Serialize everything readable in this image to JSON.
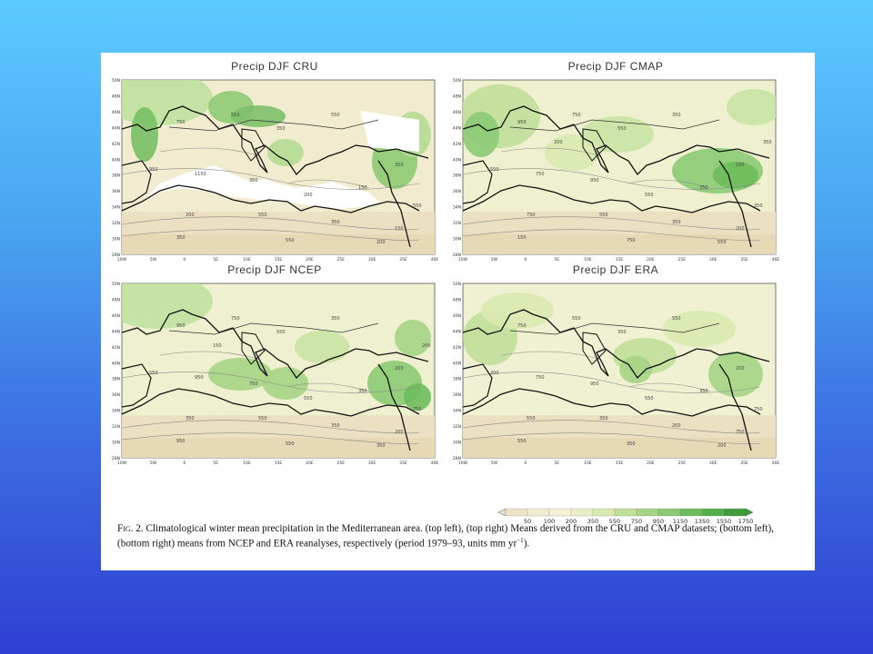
{
  "panels": [
    {
      "title": "Precip DJF CRU",
      "contour_labels": [
        "750",
        "550",
        "350",
        "550",
        "950",
        "1150",
        "350",
        "200",
        "150",
        "350",
        "550",
        "200",
        "550",
        "350",
        "150",
        "350",
        "550",
        "200"
      ]
    },
    {
      "title": "Precip DJF CMAP",
      "contour_labels": [
        "950",
        "750",
        "550",
        "350",
        "550",
        "750",
        "950",
        "550",
        "350",
        "150",
        "350",
        "750",
        "550",
        "350",
        "200",
        "150",
        "750",
        "550",
        "350",
        "200"
      ]
    },
    {
      "title": "Precip DJF NCEP",
      "contour_labels": [
        "950",
        "750",
        "550",
        "350",
        "550",
        "950",
        "750",
        "550",
        "350",
        "200",
        "750",
        "350",
        "550",
        "350",
        "200",
        "950",
        "550",
        "350",
        "200",
        "150"
      ]
    },
    {
      "title": "Precip DJF ERA",
      "contour_labels": [
        "750",
        "550",
        "350",
        "550",
        "200",
        "750",
        "950",
        "550",
        "350",
        "200",
        "750",
        "550",
        "350",
        "200",
        "750",
        "550",
        "350",
        "200"
      ]
    }
  ],
  "axes": {
    "lat_labels": [
      "50N",
      "48N",
      "46N",
      "44N",
      "42N",
      "40N",
      "38N",
      "36N",
      "34N",
      "32N",
      "30N",
      "28N"
    ],
    "lon_labels": [
      "10W",
      "5W",
      "0",
      "5E",
      "10E",
      "15E",
      "20E",
      "25E",
      "30E",
      "35E",
      "40E"
    ]
  },
  "colorbar": {
    "values": [
      "50",
      "100",
      "200",
      "350",
      "550",
      "750",
      "950",
      "1150",
      "1350",
      "1550",
      "1750"
    ],
    "colors": [
      "#eee3c8",
      "#f3ecd2",
      "#f4f1d6",
      "#e9efc8",
      "#d9e9b0",
      "#c1df99",
      "#a6d486",
      "#8bca73",
      "#6dbd5c",
      "#52b04a",
      "#3d9e3b"
    ]
  },
  "caption": {
    "fig_label": "Fig. 2.",
    "text": "Climatological winter mean precipitation in the Mediterranean area. (top left), (top right) Means derived from the CRU and CMAP datasets; (bottom left), (bottom right) means from NCEP and ERA reanalyses, respectively (period 1979–93, units mm yr",
    "unit_exp": "−1",
    "end": ")."
  }
}
